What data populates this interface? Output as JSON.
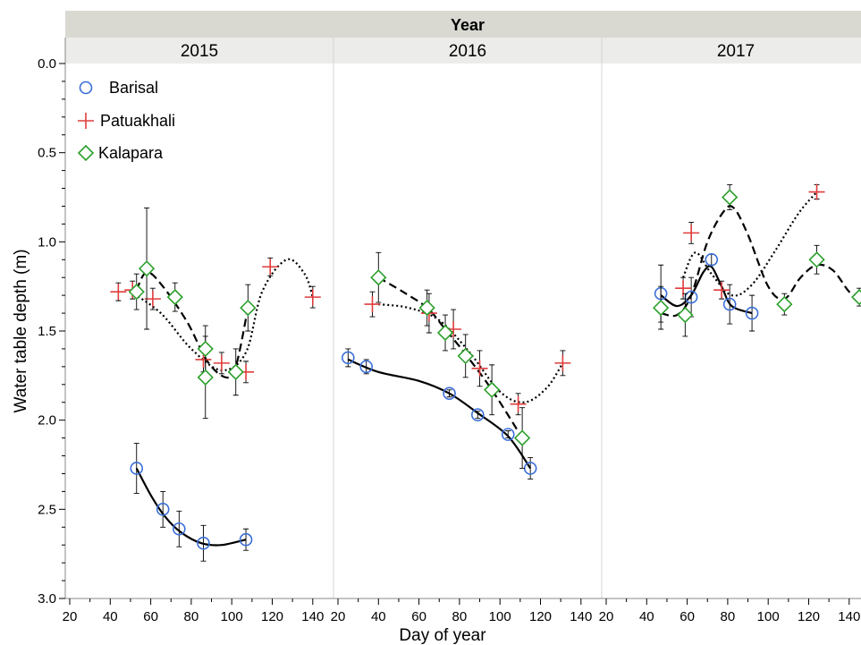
{
  "chart_data": {
    "type": "scatter",
    "facet_header": "Year",
    "xlabel": "Day of year",
    "ylabel": "Water table depth (m)",
    "y_reversed": true,
    "ylim": [
      0,
      3
    ],
    "yticks": [
      "0.0",
      "0.5",
      "1.0",
      "1.5",
      "2.0",
      "2.5",
      "3.0"
    ],
    "xlim": [
      20,
      145
    ],
    "xticks": [
      "20",
      "40",
      "60",
      "80",
      "100",
      "120",
      "140"
    ],
    "grid": false,
    "legend_position": "top-left",
    "legend": [
      {
        "name": "Barisal",
        "marker": "circle",
        "color": "#3a6fd8",
        "line": "solid"
      },
      {
        "name": "Patuakhali",
        "marker": "plus",
        "color": "#e03c3c",
        "line": "dotted"
      },
      {
        "name": "Kalapara",
        "marker": "diamond",
        "color": "#2ca02c",
        "line": "dashed"
      }
    ],
    "panels": [
      {
        "label": "2015",
        "series": [
          {
            "name": "Barisal",
            "points": [
              {
                "x": 53,
                "y": 2.27,
                "err": 0.14
              },
              {
                "x": 66,
                "y": 2.5,
                "err": 0.1
              },
              {
                "x": 74,
                "y": 2.61,
                "err": 0.1
              },
              {
                "x": 86,
                "y": 2.69,
                "err": 0.1
              },
              {
                "x": 107,
                "y": 2.67,
                "err": 0.06
              }
            ],
            "curve": [
              [
                53,
                2.27
              ],
              [
                60,
                2.42
              ],
              [
                67,
                2.54
              ],
              [
                75,
                2.63
              ],
              [
                85,
                2.69
              ],
              [
                95,
                2.7
              ],
              [
                107,
                2.67
              ]
            ]
          },
          {
            "name": "Patuakhali",
            "points": [
              {
                "x": 44,
                "y": 1.28,
                "err": 0.05
              },
              {
                "x": 51,
                "y": 1.27,
                "err": 0.05
              },
              {
                "x": 61,
                "y": 1.32,
                "err": 0.06
              },
              {
                "x": 86,
                "y": 1.66,
                "err": 0.07
              },
              {
                "x": 95,
                "y": 1.68,
                "err": 0.06
              },
              {
                "x": 107,
                "y": 1.73,
                "err": 0.06
              },
              {
                "x": 119,
                "y": 1.14,
                "err": 0.05
              },
              {
                "x": 140,
                "y": 1.31,
                "err": 0.06
              }
            ],
            "curve": [
              [
                50,
                1.28
              ],
              [
                65,
                1.4
              ],
              [
                80,
                1.6
              ],
              [
                95,
                1.72
              ],
              [
                107,
                1.62
              ],
              [
                115,
                1.28
              ],
              [
                127,
                1.1
              ],
              [
                136,
                1.18
              ],
              [
                140,
                1.31
              ]
            ]
          },
          {
            "name": "Kalapara",
            "points": [
              {
                "x": 53,
                "y": 1.28,
                "err": 0.1
              },
              {
                "x": 58,
                "y": 1.15,
                "err": 0.34
              },
              {
                "x": 72,
                "y": 1.31,
                "err": 0.08
              },
              {
                "x": 87,
                "y": 1.6,
                "err": 0.13
              },
              {
                "x": 87,
                "y": 1.76,
                "err": 0.23
              },
              {
                "x": 102,
                "y": 1.73,
                "err": 0.13
              },
              {
                "x": 108,
                "y": 1.37,
                "err": 0.13
              }
            ],
            "curve": [
              [
                53,
                1.27
              ],
              [
                58,
                1.17
              ],
              [
                66,
                1.25
              ],
              [
                78,
                1.45
              ],
              [
                88,
                1.67
              ],
              [
                97,
                1.76
              ],
              [
                102,
                1.7
              ],
              [
                108,
                1.37
              ]
            ]
          }
        ]
      },
      {
        "label": "2016",
        "series": [
          {
            "name": "Barisal",
            "points": [
              {
                "x": 25,
                "y": 1.65,
                "err": 0.05
              },
              {
                "x": 34,
                "y": 1.7,
                "err": 0.04
              },
              {
                "x": 75,
                "y": 1.85,
                "err": 0.02
              },
              {
                "x": 89,
                "y": 1.97,
                "err": 0.02
              },
              {
                "x": 104,
                "y": 2.08,
                "err": 0.02
              },
              {
                "x": 115,
                "y": 2.27,
                "err": 0.06
              }
            ],
            "curve": [
              [
                25,
                1.66
              ],
              [
                40,
                1.73
              ],
              [
                60,
                1.78
              ],
              [
                75,
                1.85
              ],
              [
                89,
                1.96
              ],
              [
                104,
                2.09
              ],
              [
                115,
                2.27
              ]
            ]
          },
          {
            "name": "Patuakhali",
            "points": [
              {
                "x": 37,
                "y": 1.35,
                "err": 0.07
              },
              {
                "x": 65,
                "y": 1.4,
                "err": 0.11
              },
              {
                "x": 77,
                "y": 1.49,
                "err": 0.11
              },
              {
                "x": 90,
                "y": 1.71,
                "err": 0.1
              },
              {
                "x": 109,
                "y": 1.91,
                "err": 0.06
              },
              {
                "x": 131,
                "y": 1.68,
                "err": 0.07
              }
            ],
            "curve": [
              [
                40,
                1.35
              ],
              [
                55,
                1.37
              ],
              [
                70,
                1.44
              ],
              [
                85,
                1.62
              ],
              [
                100,
                1.84
              ],
              [
                112,
                1.9
              ],
              [
                123,
                1.82
              ],
              [
                131,
                1.68
              ]
            ]
          },
          {
            "name": "Kalapara",
            "points": [
              {
                "x": 40,
                "y": 1.2,
                "err": 0.14
              },
              {
                "x": 64,
                "y": 1.37,
                "err": 0.1
              },
              {
                "x": 73,
                "y": 1.51,
                "err": 0.1
              },
              {
                "x": 83,
                "y": 1.64,
                "err": 0.12
              },
              {
                "x": 96,
                "y": 1.83,
                "err": 0.14
              },
              {
                "x": 111,
                "y": 2.1,
                "err": 0.17
              }
            ],
            "curve": [
              [
                40,
                1.2
              ],
              [
                52,
                1.28
              ],
              [
                64,
                1.37
              ],
              [
                73,
                1.49
              ],
              [
                83,
                1.63
              ],
              [
                96,
                1.83
              ],
              [
                111,
                2.1
              ]
            ]
          }
        ]
      },
      {
        "label": "2017",
        "series": [
          {
            "name": "Barisal",
            "points": [
              {
                "x": 47,
                "y": 1.29,
                "err": 0.16
              },
              {
                "x": 62,
                "y": 1.31,
                "err": 0.11
              },
              {
                "x": 72,
                "y": 1.1,
                "err": 0.03
              },
              {
                "x": 81,
                "y": 1.35,
                "err": 0.11
              },
              {
                "x": 92,
                "y": 1.4,
                "err": 0.1
              }
            ],
            "curve": [
              [
                47,
                1.3
              ],
              [
                55,
                1.36
              ],
              [
                62,
                1.3
              ],
              [
                68,
                1.17
              ],
              [
                72,
                1.14
              ],
              [
                77,
                1.25
              ],
              [
                82,
                1.36
              ],
              [
                92,
                1.4
              ]
            ]
          },
          {
            "name": "Patuakhali",
            "points": [
              {
                "x": 58,
                "y": 1.26,
                "err": 0.06
              },
              {
                "x": 62,
                "y": 0.95,
                "err": 0.06
              },
              {
                "x": 77,
                "y": 1.27,
                "err": 0.05
              },
              {
                "x": 124,
                "y": 0.72,
                "err": 0.04
              }
            ],
            "curve": [
              [
                58,
                1.2
              ],
              [
                64,
                1.06
              ],
              [
                72,
                1.18
              ],
              [
                82,
                1.3
              ],
              [
                92,
                1.24
              ],
              [
                104,
                1.04
              ],
              [
                115,
                0.84
              ],
              [
                124,
                0.72
              ]
            ]
          },
          {
            "name": "Kalapara",
            "points": [
              {
                "x": 47,
                "y": 1.37,
                "err": 0.12
              },
              {
                "x": 59,
                "y": 1.41,
                "err": 0.12
              },
              {
                "x": 81,
                "y": 0.75,
                "err": 0.07
              },
              {
                "x": 108,
                "y": 1.35,
                "err": 0.06
              },
              {
                "x": 124,
                "y": 1.1,
                "err": 0.08
              },
              {
                "x": 145,
                "y": 1.31,
                "err": 0.05
              }
            ],
            "curve": [
              [
                47,
                1.4
              ],
              [
                55,
                1.41
              ],
              [
                62,
                1.3
              ],
              [
                70,
                1.0
              ],
              [
                78,
                0.83
              ],
              [
                83,
                0.81
              ],
              [
                90,
                0.96
              ],
              [
                100,
                1.25
              ],
              [
                108,
                1.32
              ],
              [
                116,
                1.2
              ],
              [
                124,
                1.13
              ],
              [
                132,
                1.16
              ],
              [
                140,
                1.28
              ],
              [
                145,
                1.31
              ]
            ]
          }
        ]
      }
    ]
  }
}
